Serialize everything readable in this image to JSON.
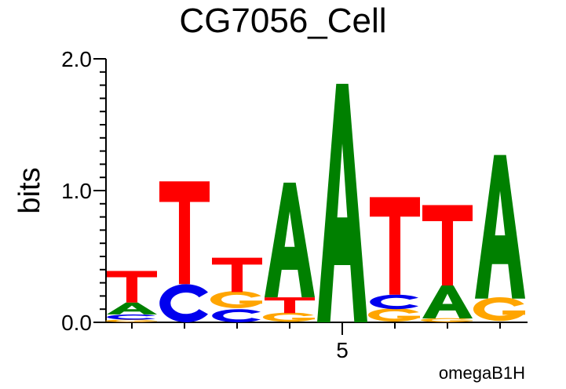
{
  "chart_data": {
    "type": "sequence-logo",
    "title": "CG7056_Cell",
    "ylabel": "bits",
    "xlabel": "",
    "ylim": [
      0,
      2.0
    ],
    "y_ticks": [
      "0.0",
      "1.0",
      "2.0"
    ],
    "x_ticks": [
      {
        "position": 5,
        "label": "5"
      }
    ],
    "footer": "omegaB1H",
    "colors": {
      "A": "#008000",
      "C": "#0000ee",
      "G": "#ffa500",
      "T": "#ff0000"
    },
    "positions": [
      {
        "index": 1,
        "letters": [
          {
            "base": "G",
            "bits": 0.02
          },
          {
            "base": "C",
            "bits": 0.04
          },
          {
            "base": "A",
            "bits": 0.09
          },
          {
            "base": "T",
            "bits": 0.24
          }
        ]
      },
      {
        "index": 2,
        "letters": [
          {
            "base": "C",
            "bits": 0.29
          },
          {
            "base": "T",
            "bits": 0.78
          }
        ]
      },
      {
        "index": 3,
        "letters": [
          {
            "base": "C",
            "bits": 0.1
          },
          {
            "base": "G",
            "bits": 0.13
          },
          {
            "base": "T",
            "bits": 0.26
          }
        ]
      },
      {
        "index": 4,
        "letters": [
          {
            "base": "G",
            "bits": 0.07
          },
          {
            "base": "T",
            "bits": 0.12
          },
          {
            "base": "A",
            "bits": 0.87
          }
        ]
      },
      {
        "index": 5,
        "letters": [
          {
            "base": "A",
            "bits": 1.81
          }
        ]
      },
      {
        "index": 6,
        "letters": [
          {
            "base": "G",
            "bits": 0.1
          },
          {
            "base": "C",
            "bits": 0.11
          },
          {
            "base": "T",
            "bits": 0.74
          }
        ]
      },
      {
        "index": 7,
        "letters": [
          {
            "base": "G",
            "bits": 0.03
          },
          {
            "base": "A",
            "bits": 0.25
          },
          {
            "base": "T",
            "bits": 0.61
          }
        ]
      },
      {
        "index": 8,
        "letters": [
          {
            "base": "G",
            "bits": 0.18
          },
          {
            "base": "A",
            "bits": 1.09
          }
        ]
      }
    ]
  }
}
